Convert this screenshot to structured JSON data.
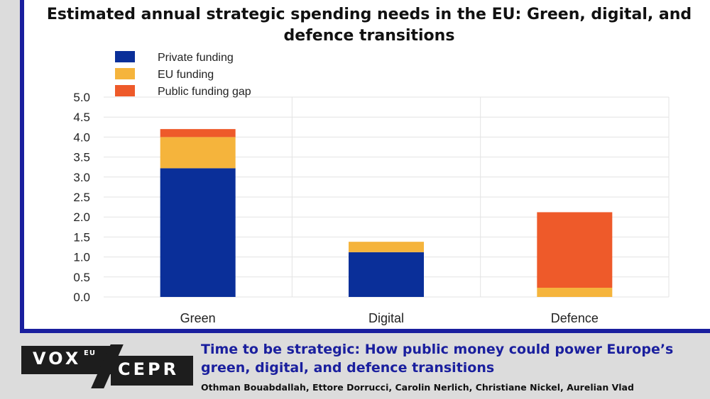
{
  "chart_data": {
    "type": "bar",
    "stacked": true,
    "title": "Estimated annual strategic spending needs in the EU: Green, digital, and defence transitions",
    "categories": [
      "Green",
      "Digital",
      "Defence"
    ],
    "series": [
      {
        "name": "Private funding",
        "color": "#0a2f99",
        "values": [
          3.22,
          1.12,
          0.0
        ]
      },
      {
        "name": "EU funding",
        "color": "#f5b43c",
        "values": [
          0.78,
          0.26,
          0.23
        ]
      },
      {
        "name": "Public funding gap",
        "color": "#ee5a2a",
        "values": [
          0.2,
          0.0,
          1.89
        ]
      }
    ],
    "ylim": [
      0,
      5.0
    ],
    "yticks": [
      "0.0",
      "0.5",
      "1.0",
      "1.5",
      "2.0",
      "2.5",
      "3.0",
      "3.5",
      "4.0",
      "4.5",
      "5.0"
    ],
    "xlabel": "",
    "ylabel": "",
    "grid": true,
    "legend": "top-left"
  },
  "footer": {
    "vox": "VOX",
    "eu": "EU",
    "cepr": "CEPR",
    "article_title": "Time to be strategic: How public money could power Europe’s green, digital, and defence transitions",
    "authors": "Othman Bouabdallah, Ettore Dorrucci, Carolin Nerlich, Christiane Nickel, Aurelian Vlad"
  }
}
